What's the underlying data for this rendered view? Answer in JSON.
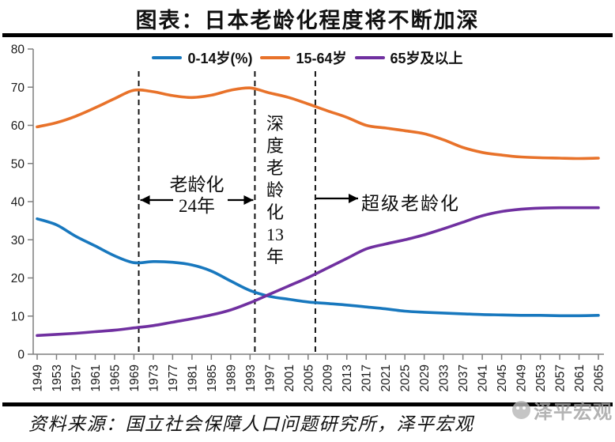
{
  "title": "图表：日本老龄化程度将不断加深",
  "legend": [
    {
      "label": "0-14岁(%)",
      "color": "#1878BE"
    },
    {
      "label": "15-64岁",
      "color": "#E8722A"
    },
    {
      "label": "65岁及以上",
      "color": "#7030A0"
    }
  ],
  "annotations": {
    "aging": {
      "line1": "老龄化",
      "line2": "24年"
    },
    "deep_aging": {
      "chars": [
        "深",
        "度",
        "老",
        "龄",
        "化",
        "13",
        "年"
      ]
    },
    "super_aging": {
      "label": "超级老龄化"
    }
  },
  "source": "资料来源：国立社会保障人口问题研究所，泽平宏观",
  "watermark": "泽平宏观",
  "chart_data": {
    "type": "line",
    "title": "图表：日本老龄化程度将不断加深",
    "xlabel": "",
    "ylabel": "",
    "ylim": [
      0,
      80
    ],
    "ytick_step": 10,
    "grid": false,
    "legend_position": "top-center",
    "x": [
      1949,
      1953,
      1957,
      1961,
      1965,
      1969,
      1973,
      1977,
      1981,
      1985,
      1989,
      1993,
      1997,
      2001,
      2005,
      2009,
      2013,
      2017,
      2021,
      2025,
      2029,
      2033,
      2037,
      2041,
      2045,
      2049,
      2053,
      2057,
      2061,
      2065
    ],
    "series": [
      {
        "name": "0-14岁(%)",
        "color": "#1878BE",
        "values": [
          35.5,
          33.9,
          30.9,
          28.4,
          25.8,
          24.0,
          24.3,
          24.1,
          23.4,
          21.8,
          19.2,
          16.7,
          15.2,
          14.4,
          13.7,
          13.3,
          12.9,
          12.4,
          11.9,
          11.3,
          11.0,
          10.8,
          10.6,
          10.4,
          10.3,
          10.2,
          10.2,
          10.1,
          10.1,
          10.2
        ]
      },
      {
        "name": "15-64岁",
        "color": "#E8722A",
        "values": [
          59.6,
          60.7,
          62.4,
          64.6,
          67.0,
          69.2,
          68.8,
          67.8,
          67.3,
          67.9,
          69.2,
          69.8,
          68.5,
          67.3,
          65.6,
          63.8,
          62.1,
          60.0,
          59.3,
          58.6,
          57.8,
          56.2,
          54.2,
          52.9,
          52.2,
          51.7,
          51.5,
          51.4,
          51.3,
          51.4
        ]
      },
      {
        "name": "65岁及以上",
        "color": "#7030A0",
        "values": [
          4.9,
          5.2,
          5.5,
          5.9,
          6.3,
          6.9,
          7.5,
          8.4,
          9.3,
          10.3,
          11.6,
          13.5,
          15.7,
          17.9,
          20.1,
          22.6,
          25.1,
          27.6,
          28.9,
          30.0,
          31.3,
          32.9,
          34.6,
          36.3,
          37.4,
          38.0,
          38.3,
          38.4,
          38.4,
          38.4
        ]
      }
    ],
    "dashed_vlines_years": [
      1970,
      1994,
      2006.5
    ]
  }
}
